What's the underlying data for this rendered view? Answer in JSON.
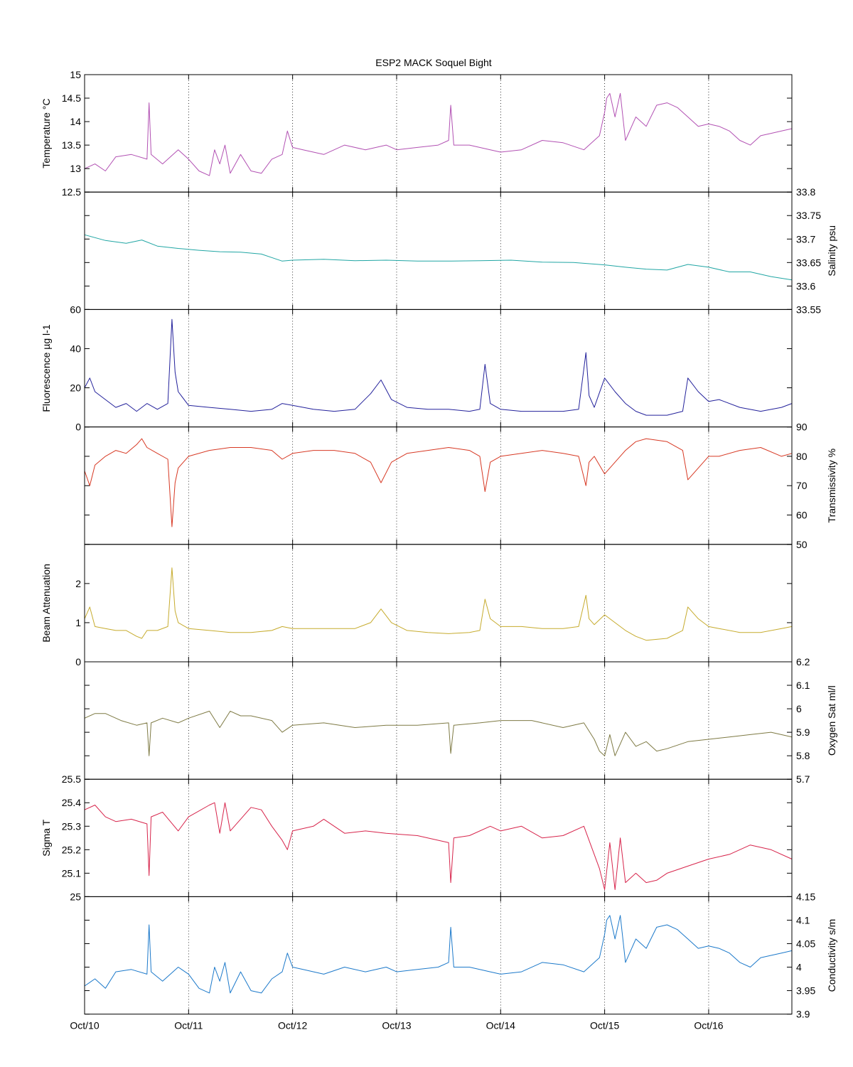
{
  "title": "ESP2 MACK  Soquel Bight",
  "x_axis": {
    "tick_labels": [
      "Oct/10",
      "Oct/11",
      "Oct/12",
      "Oct/13",
      "Oct/14",
      "Oct/15",
      "Oct/16"
    ],
    "range_days": [
      10,
      16.8
    ]
  },
  "chart_data": [
    {
      "type": "line",
      "name": "temperature",
      "ylabel": "Temperature °C",
      "ylabel_side": "left",
      "color": "#B251B3",
      "ylim": [
        12.5,
        15
      ],
      "ytick_labels": [
        "12.5",
        "13",
        "13.5",
        "14",
        "14.5",
        "15"
      ],
      "ytick_label_show": [
        true,
        true,
        true,
        true,
        true,
        true
      ],
      "x": [
        10.0,
        10.1,
        10.2,
        10.3,
        10.45,
        10.6,
        10.62,
        10.64,
        10.75,
        10.9,
        11.0,
        11.1,
        11.2,
        11.25,
        11.3,
        11.35,
        11.4,
        11.5,
        11.6,
        11.7,
        11.8,
        11.9,
        11.95,
        12.0,
        12.1,
        12.3,
        12.5,
        12.7,
        12.9,
        13.0,
        13.2,
        13.4,
        13.5,
        13.52,
        13.55,
        13.7,
        13.9,
        14.0,
        14.2,
        14.4,
        14.6,
        14.8,
        14.95,
        15.0,
        15.02,
        15.05,
        15.1,
        15.15,
        15.2,
        15.3,
        15.4,
        15.5,
        15.6,
        15.7,
        15.8,
        15.9,
        16.0,
        16.1,
        16.2,
        16.3,
        16.4,
        16.5,
        16.6,
        16.7,
        16.8
      ],
      "y": [
        13.0,
        13.1,
        12.95,
        13.25,
        13.3,
        13.2,
        14.4,
        13.3,
        13.1,
        13.4,
        13.2,
        12.95,
        12.85,
        13.4,
        13.1,
        13.5,
        12.9,
        13.3,
        12.95,
        12.9,
        13.2,
        13.3,
        13.8,
        13.45,
        13.4,
        13.3,
        13.5,
        13.4,
        13.5,
        13.4,
        13.45,
        13.5,
        13.6,
        14.35,
        13.5,
        13.5,
        13.4,
        13.35,
        13.4,
        13.6,
        13.55,
        13.4,
        13.7,
        14.2,
        14.5,
        14.6,
        14.1,
        14.6,
        13.6,
        14.1,
        13.9,
        14.35,
        14.4,
        14.3,
        14.1,
        13.9,
        13.95,
        13.9,
        13.8,
        13.6,
        13.5,
        13.7,
        13.75,
        13.8,
        13.85
      ]
    },
    {
      "type": "line",
      "name": "salinity",
      "ylabel": "Salinity psu",
      "ylabel_side": "right",
      "color": "#21A6A4",
      "ylim": [
        33.55,
        33.8
      ],
      "ytick_labels": [
        "33.55",
        "33.6",
        "33.65",
        "33.7",
        "33.75",
        "33.8"
      ],
      "ytick_label_show": [
        true,
        true,
        true,
        true,
        true,
        true
      ],
      "x": [
        10.0,
        10.2,
        10.4,
        10.55,
        10.7,
        10.9,
        11.1,
        11.3,
        11.5,
        11.7,
        11.9,
        12.0,
        12.3,
        12.6,
        12.9,
        13.2,
        13.5,
        13.8,
        14.1,
        14.4,
        14.7,
        15.0,
        15.2,
        15.4,
        15.6,
        15.8,
        16.0,
        16.2,
        16.4,
        16.6,
        16.8
      ],
      "y": [
        33.709,
        33.697,
        33.691,
        33.698,
        33.685,
        33.68,
        33.676,
        33.673,
        33.672,
        33.668,
        33.653,
        33.655,
        33.657,
        33.654,
        33.655,
        33.653,
        33.653,
        33.654,
        33.655,
        33.651,
        33.65,
        33.645,
        33.64,
        33.636,
        33.634,
        33.646,
        33.64,
        33.63,
        33.63,
        33.62,
        33.613
      ]
    },
    {
      "type": "line",
      "name": "fluorescence",
      "ylabel": "Fluorescence µg l-1",
      "ylabel_side": "left",
      "color": "#23219B",
      "ylim": [
        0,
        60
      ],
      "ytick_labels": [
        "0",
        "20",
        "40",
        "60"
      ],
      "ytick_label_show": [
        true,
        true,
        true,
        true
      ],
      "x": [
        10.0,
        10.05,
        10.1,
        10.2,
        10.3,
        10.4,
        10.5,
        10.6,
        10.7,
        10.8,
        10.84,
        10.87,
        10.9,
        11.0,
        11.2,
        11.4,
        11.6,
        11.8,
        11.9,
        12.0,
        12.2,
        12.4,
        12.6,
        12.75,
        12.85,
        12.95,
        13.1,
        13.3,
        13.5,
        13.7,
        13.8,
        13.85,
        13.9,
        14.0,
        14.2,
        14.4,
        14.6,
        14.75,
        14.82,
        14.85,
        14.9,
        15.0,
        15.1,
        15.2,
        15.3,
        15.4,
        15.6,
        15.75,
        15.8,
        15.9,
        16.0,
        16.1,
        16.3,
        16.5,
        16.7,
        16.8
      ],
      "y": [
        20,
        25,
        18,
        14,
        10,
        12,
        8,
        12,
        9,
        12,
        55,
        28,
        18,
        11,
        10,
        9,
        8,
        9,
        12,
        11,
        9,
        8,
        9,
        17,
        24,
        14,
        10,
        9,
        9,
        8,
        9,
        32,
        12,
        9,
        8,
        8,
        8,
        9,
        38,
        16,
        10,
        25,
        18,
        12,
        8,
        6,
        6,
        8,
        25,
        18,
        13,
        14,
        10,
        8,
        10,
        12
      ]
    },
    {
      "type": "line",
      "name": "transmissivity",
      "ylabel": "Transmissivity %",
      "ylabel_side": "right",
      "color": "#D73823",
      "ylim": [
        50,
        90
      ],
      "ytick_labels": [
        "50",
        "60",
        "70",
        "80",
        "90"
      ],
      "ytick_label_show": [
        true,
        true,
        true,
        true,
        true
      ],
      "x": [
        10.0,
        10.05,
        10.1,
        10.2,
        10.3,
        10.4,
        10.5,
        10.55,
        10.6,
        10.7,
        10.8,
        10.84,
        10.87,
        10.9,
        11.0,
        11.2,
        11.4,
        11.6,
        11.8,
        11.9,
        12.0,
        12.2,
        12.4,
        12.6,
        12.75,
        12.85,
        12.95,
        13.1,
        13.3,
        13.5,
        13.7,
        13.8,
        13.85,
        13.9,
        14.0,
        14.2,
        14.4,
        14.6,
        14.75,
        14.82,
        14.85,
        14.9,
        15.0,
        15.1,
        15.2,
        15.3,
        15.4,
        15.6,
        15.75,
        15.8,
        15.9,
        16.0,
        16.1,
        16.3,
        16.5,
        16.7,
        16.8
      ],
      "y": [
        75,
        70,
        77,
        80,
        82,
        81,
        84,
        86,
        83,
        81,
        79,
        56,
        71,
        76,
        80,
        82,
        83,
        83,
        82,
        79,
        81,
        82,
        82,
        81,
        78,
        71,
        78,
        81,
        82,
        83,
        82,
        80,
        68,
        78,
        80,
        81,
        82,
        81,
        80,
        70,
        78,
        80,
        74,
        78,
        82,
        85,
        86,
        85,
        82,
        72,
        76,
        80,
        80,
        82,
        83,
        80,
        81
      ]
    },
    {
      "type": "line",
      "name": "beam_attenuation",
      "ylabel": "Beam Attenuation",
      "ylabel_side": "left",
      "color": "#C6AB2D",
      "ylim": [
        0,
        3
      ],
      "ytick_labels": [
        "0",
        "1",
        "2",
        "3"
      ],
      "ytick_label_show": [
        true,
        true,
        true,
        false
      ],
      "x": [
        10.0,
        10.05,
        10.1,
        10.2,
        10.3,
        10.4,
        10.5,
        10.55,
        10.6,
        10.7,
        10.8,
        10.84,
        10.87,
        10.9,
        11.0,
        11.2,
        11.4,
        11.6,
        11.8,
        11.9,
        12.0,
        12.2,
        12.4,
        12.6,
        12.75,
        12.85,
        12.95,
        13.1,
        13.3,
        13.5,
        13.7,
        13.8,
        13.85,
        13.9,
        14.0,
        14.2,
        14.4,
        14.6,
        14.75,
        14.82,
        14.85,
        14.9,
        15.0,
        15.1,
        15.2,
        15.3,
        15.4,
        15.6,
        15.75,
        15.8,
        15.9,
        16.0,
        16.1,
        16.3,
        16.5,
        16.7,
        16.8
      ],
      "y": [
        1.1,
        1.4,
        0.9,
        0.85,
        0.8,
        0.8,
        0.65,
        0.6,
        0.8,
        0.8,
        0.9,
        2.4,
        1.3,
        1.0,
        0.85,
        0.8,
        0.75,
        0.75,
        0.8,
        0.9,
        0.85,
        0.85,
        0.85,
        0.85,
        1.0,
        1.35,
        1.0,
        0.8,
        0.75,
        0.72,
        0.75,
        0.8,
        1.6,
        1.1,
        0.9,
        0.9,
        0.85,
        0.85,
        0.9,
        1.7,
        1.1,
        0.95,
        1.2,
        1.0,
        0.8,
        0.65,
        0.55,
        0.6,
        0.8,
        1.4,
        1.1,
        0.9,
        0.85,
        0.75,
        0.75,
        0.85,
        0.9
      ]
    },
    {
      "type": "line",
      "name": "oxygen_sat",
      "ylabel": "Oxygen Sat ml/l",
      "ylabel_side": "right",
      "color": "#7E7A44",
      "ylim": [
        5.7,
        6.2
      ],
      "ytick_labels": [
        "5.7",
        "5.8",
        "5.9",
        "6",
        "6.1",
        "6.2"
      ],
      "ytick_label_show": [
        true,
        true,
        true,
        true,
        true,
        true
      ],
      "x": [
        10.0,
        10.1,
        10.2,
        10.35,
        10.5,
        10.6,
        10.62,
        10.64,
        10.75,
        10.9,
        11.0,
        11.2,
        11.3,
        11.4,
        11.5,
        11.6,
        11.8,
        11.9,
        12.0,
        12.3,
        12.6,
        12.9,
        13.2,
        13.5,
        13.52,
        13.55,
        13.8,
        14.0,
        14.3,
        14.6,
        14.8,
        14.9,
        14.95,
        15.0,
        15.05,
        15.1,
        15.2,
        15.3,
        15.4,
        15.5,
        15.6,
        15.8,
        16.0,
        16.2,
        16.4,
        16.6,
        16.8
      ],
      "y": [
        5.96,
        5.98,
        5.98,
        5.95,
        5.93,
        5.94,
        5.8,
        5.94,
        5.96,
        5.94,
        5.96,
        5.99,
        5.92,
        5.99,
        5.97,
        5.97,
        5.95,
        5.9,
        5.93,
        5.94,
        5.92,
        5.93,
        5.93,
        5.94,
        5.81,
        5.93,
        5.94,
        5.95,
        5.95,
        5.92,
        5.94,
        5.87,
        5.82,
        5.8,
        5.89,
        5.8,
        5.9,
        5.84,
        5.86,
        5.82,
        5.83,
        5.86,
        5.87,
        5.88,
        5.89,
        5.9,
        5.88
      ]
    },
    {
      "type": "line",
      "name": "sigma_t",
      "ylabel": "Sigma T",
      "ylabel_side": "left",
      "color": "#D7244B",
      "ylim": [
        25,
        25.5
      ],
      "ytick_labels": [
        "25",
        "25.1",
        "25.2",
        "25.3",
        "25.4",
        "25.5"
      ],
      "ytick_label_show": [
        true,
        true,
        true,
        true,
        true,
        true
      ],
      "x": [
        10.0,
        10.1,
        10.2,
        10.3,
        10.45,
        10.6,
        10.62,
        10.64,
        10.75,
        10.9,
        11.0,
        11.2,
        11.25,
        11.3,
        11.35,
        11.4,
        11.5,
        11.6,
        11.7,
        11.8,
        11.9,
        11.95,
        12.0,
        12.2,
        12.3,
        12.5,
        12.7,
        12.9,
        13.2,
        13.5,
        13.52,
        13.55,
        13.7,
        13.9,
        14.0,
        14.2,
        14.4,
        14.6,
        14.8,
        14.95,
        15.0,
        15.05,
        15.1,
        15.15,
        15.2,
        15.3,
        15.4,
        15.5,
        15.6,
        15.8,
        16.0,
        16.2,
        16.4,
        16.6,
        16.8
      ],
      "y": [
        25.37,
        25.39,
        25.34,
        25.32,
        25.33,
        25.31,
        25.09,
        25.34,
        25.36,
        25.28,
        25.34,
        25.39,
        25.4,
        25.27,
        25.4,
        25.28,
        25.33,
        25.38,
        25.37,
        25.3,
        25.24,
        25.2,
        25.28,
        25.3,
        25.33,
        25.27,
        25.28,
        25.27,
        25.26,
        25.23,
        25.06,
        25.25,
        25.26,
        25.3,
        25.28,
        25.3,
        25.25,
        25.26,
        25.3,
        25.12,
        25.03,
        25.23,
        25.03,
        25.25,
        25.06,
        25.1,
        25.06,
        25.07,
        25.1,
        25.13,
        25.16,
        25.18,
        25.22,
        25.2,
        25.16
      ]
    },
    {
      "type": "line",
      "name": "conductivity",
      "ylabel": "Conductivity s/m",
      "ylabel_side": "right",
      "color": "#1C79CA",
      "ylim": [
        3.9,
        4.15
      ],
      "ytick_labels": [
        "3.9",
        "3.95",
        "4",
        "4.05",
        "4.1",
        "4.15"
      ],
      "ytick_label_show": [
        true,
        true,
        true,
        true,
        true,
        true
      ],
      "x": [
        10.0,
        10.1,
        10.2,
        10.3,
        10.45,
        10.6,
        10.62,
        10.64,
        10.75,
        10.9,
        11.0,
        11.1,
        11.2,
        11.25,
        11.3,
        11.35,
        11.4,
        11.5,
        11.6,
        11.7,
        11.8,
        11.9,
        11.95,
        12.0,
        12.1,
        12.3,
        12.5,
        12.7,
        12.9,
        13.0,
        13.2,
        13.4,
        13.5,
        13.52,
        13.55,
        13.7,
        13.9,
        14.0,
        14.2,
        14.4,
        14.6,
        14.8,
        14.95,
        15.0,
        15.02,
        15.05,
        15.1,
        15.15,
        15.2,
        15.3,
        15.4,
        15.5,
        15.6,
        15.7,
        15.8,
        15.9,
        16.0,
        16.1,
        16.2,
        16.3,
        16.4,
        16.5,
        16.6,
        16.7,
        16.8
      ],
      "y": [
        3.96,
        3.975,
        3.955,
        3.99,
        3.995,
        3.985,
        4.09,
        3.99,
        3.97,
        4.0,
        3.985,
        3.955,
        3.945,
        4.0,
        3.97,
        4.01,
        3.945,
        3.99,
        3.95,
        3.945,
        3.975,
        3.99,
        4.03,
        4.0,
        3.995,
        3.985,
        4.0,
        3.99,
        4.0,
        3.99,
        3.995,
        4.0,
        4.01,
        4.085,
        4.0,
        4.0,
        3.99,
        3.985,
        3.99,
        4.01,
        4.005,
        3.99,
        4.02,
        4.07,
        4.1,
        4.11,
        4.06,
        4.11,
        4.01,
        4.06,
        4.04,
        4.085,
        4.09,
        4.08,
        4.06,
        4.04,
        4.045,
        4.04,
        4.03,
        4.01,
        4.0,
        4.02,
        4.025,
        4.03,
        4.035
      ]
    }
  ]
}
